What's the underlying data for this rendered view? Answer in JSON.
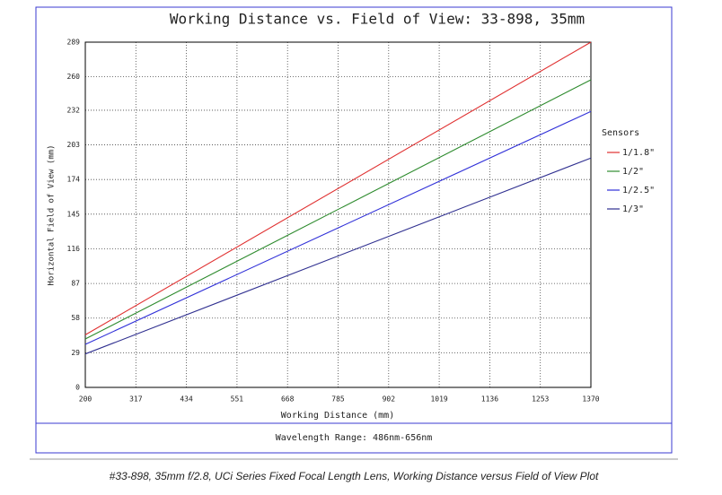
{
  "chart_data": {
    "type": "line",
    "title": "Working Distance vs. Field of View: 33-898, 35mm",
    "x_label": "Working Distance (mm)",
    "y_label": "Horizontal Field of View (mm)",
    "legend_title": "Sensors",
    "footer": "Wavelength Range: 486nm-656nm",
    "x": [
      200,
      1370
    ],
    "series": [
      {
        "name": "1/1.8\"",
        "color": "#e03030",
        "values": [
          44,
          289
        ]
      },
      {
        "name": "1/2\"",
        "color": "#2e8b2e",
        "values": [
          40.5,
          257.5
        ]
      },
      {
        "name": "1/2.5\"",
        "color": "#3030d8",
        "values": [
          36,
          231
        ]
      },
      {
        "name": "1/3\"",
        "color": "#303090",
        "values": [
          28,
          192
        ]
      }
    ],
    "xlim": [
      200,
      1370
    ],
    "ylim": [
      0,
      289
    ],
    "xticks": [
      200,
      317,
      434,
      551,
      668,
      785,
      902,
      1019,
      1136,
      1253,
      1370
    ],
    "yticks": [
      0,
      29,
      58,
      87,
      116,
      145,
      174,
      203,
      232,
      260,
      289
    ],
    "grid": true
  },
  "caption": "#33-898, 35mm f/2.8, UCi Series Fixed Focal Length Lens, Working Distance versus Field of View Plot"
}
